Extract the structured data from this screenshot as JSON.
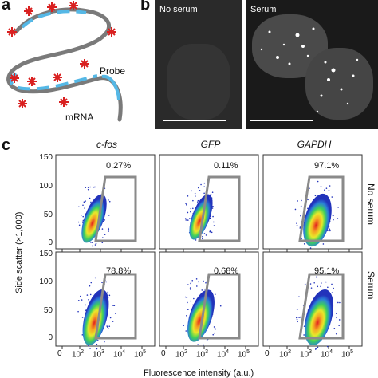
{
  "panels": {
    "a": {
      "letter": "a",
      "labels": {
        "probe": "Probe",
        "mrna": "mRNA"
      }
    },
    "b": {
      "letter": "b",
      "left_label": "No serum",
      "right_label": "Serum"
    },
    "c": {
      "letter": "c",
      "columns": [
        "c-fos",
        "GFP",
        "GAPDH"
      ],
      "rows": [
        "No serum",
        "Serum"
      ],
      "y_label": "Side scatter (×1,000)",
      "x_label": "Fluorescence intensity (a.u.)",
      "y_ticks": [
        "150",
        "100",
        "50",
        "0"
      ],
      "x_ticks": [
        "0",
        "10",
        "10",
        "10",
        "10",
        "10"
      ],
      "x_tick_exps": [
        "",
        "2",
        "3",
        "4",
        "5"
      ],
      "percentages": {
        "no_serum": [
          "0.27%",
          "0.11%",
          "97.1%"
        ],
        "serum": [
          "78.8%",
          "0.68%",
          "95.1%"
        ]
      }
    }
  },
  "colors": {
    "mrna": "#7a7a7a",
    "probe": "#55b8e6",
    "fluor": "#d92020",
    "gate": "#8a8a8a"
  }
}
